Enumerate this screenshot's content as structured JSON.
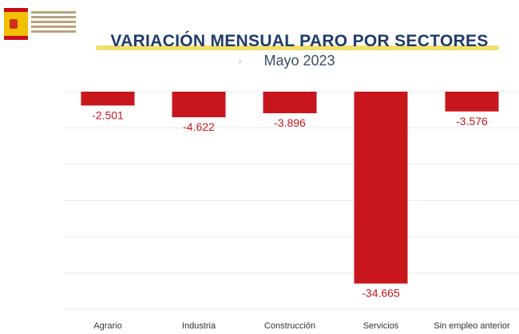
{
  "colors": {
    "bar": "#c8161d",
    "label": "#c8161d",
    "title": "#1f3b6b",
    "grid": "#ececec"
  },
  "logo": {
    "icon": "spain-coat-of-arms-icon"
  },
  "chart_data": {
    "type": "bar",
    "title": "VARIACIÓN MENSUAL PARO POR SECTORES",
    "subtitle": "Mayo 2023",
    "categories": [
      "Agrario",
      "Industria",
      "Construcción",
      "Servicios",
      "Sin empleo anterior"
    ],
    "values": [
      -2501,
      -4622,
      -3896,
      -34665,
      -3576
    ],
    "data_labels": [
      "-2.501",
      "-4.622",
      "-3.896",
      "-34.665",
      "-3.576"
    ],
    "ylim": [
      -35000,
      0
    ],
    "grid": true,
    "legend": "none"
  }
}
